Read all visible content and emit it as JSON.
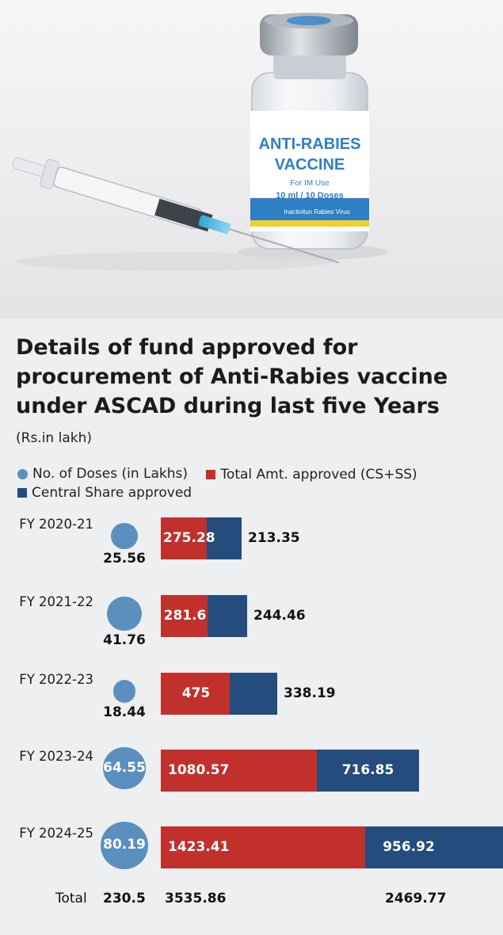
{
  "photo": {
    "vial_label_title_1": "ANTI-RABIES",
    "vial_label_title_2": "VACCINE",
    "vial_label_use": "For IM Use",
    "vial_label_dose": "10 ml / 10 Doses",
    "vial_label_virus": "Inactivitun Rabies Virus"
  },
  "title": "Details of fund approved for procurement of Anti-Rabies vaccine under ASCAD during last five Years",
  "subtitle": "(Rs.in lakh)",
  "legend": {
    "doses": "No. of Doses (in Lakhs)",
    "total": "Total Amt. approved (CS+SS)",
    "central": "Central Share approved"
  },
  "colors": {
    "doses": "#5b8fbe",
    "total": "#c2302c",
    "central": "#244c7d"
  },
  "chart_data": {
    "type": "bar",
    "categories": [
      "FY 2020-21",
      "FY 2021-22",
      "FY 2022-23",
      "FY 2023-24",
      "FY 2024-25"
    ],
    "series": [
      {
        "name": "No. of Doses (in Lakhs)",
        "values": [
          25.56,
          41.76,
          18.44,
          64.55,
          80.19
        ]
      },
      {
        "name": "Total Amt. approved (CS+SS)",
        "values": [
          275.28,
          281.6,
          475,
          1080.57,
          1423.41
        ]
      },
      {
        "name": "Central Share approved",
        "values": [
          213.35,
          244.46,
          338.19,
          716.85,
          956.92
        ]
      }
    ],
    "labels": {
      "doses": [
        "25.56",
        "41.76",
        "18.44",
        "64.55",
        "80.19"
      ],
      "total": [
        "275.28",
        "281.6",
        "475",
        "1080.57",
        "1423.41"
      ],
      "central": [
        "213.35",
        "244.46",
        "338.19",
        "716.85",
        "956.92"
      ]
    },
    "totals": {
      "label": "Total",
      "doses": "230.5",
      "total": "3535.86",
      "central": "2469.77"
    }
  }
}
